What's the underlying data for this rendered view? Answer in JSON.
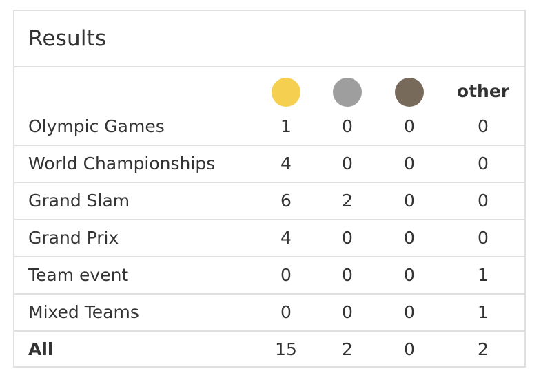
{
  "title": "Results",
  "columns": {
    "gold_icon": "gold-medal-icon",
    "silver_icon": "silver-medal-icon",
    "bronze_icon": "bronze-medal-icon",
    "other_label": "other",
    "gold_color": "#f5cf50",
    "silver_color": "#9e9e9e",
    "bronze_color": "#776a5a"
  },
  "rows": [
    {
      "name": "Olympic Games",
      "gold": "1",
      "silver": "0",
      "bronze": "0",
      "other": "0"
    },
    {
      "name": "World Championships",
      "gold": "4",
      "silver": "0",
      "bronze": "0",
      "other": "0"
    },
    {
      "name": "Grand Slam",
      "gold": "6",
      "silver": "2",
      "bronze": "0",
      "other": "0"
    },
    {
      "name": "Grand Prix",
      "gold": "4",
      "silver": "0",
      "bronze": "0",
      "other": "0"
    },
    {
      "name": "Team event",
      "gold": "0",
      "silver": "0",
      "bronze": "0",
      "other": "1"
    },
    {
      "name": "Mixed Teams",
      "gold": "0",
      "silver": "0",
      "bronze": "0",
      "other": "1"
    }
  ],
  "total": {
    "name": "All",
    "gold": "15",
    "silver": "2",
    "bronze": "0",
    "other": "2"
  }
}
